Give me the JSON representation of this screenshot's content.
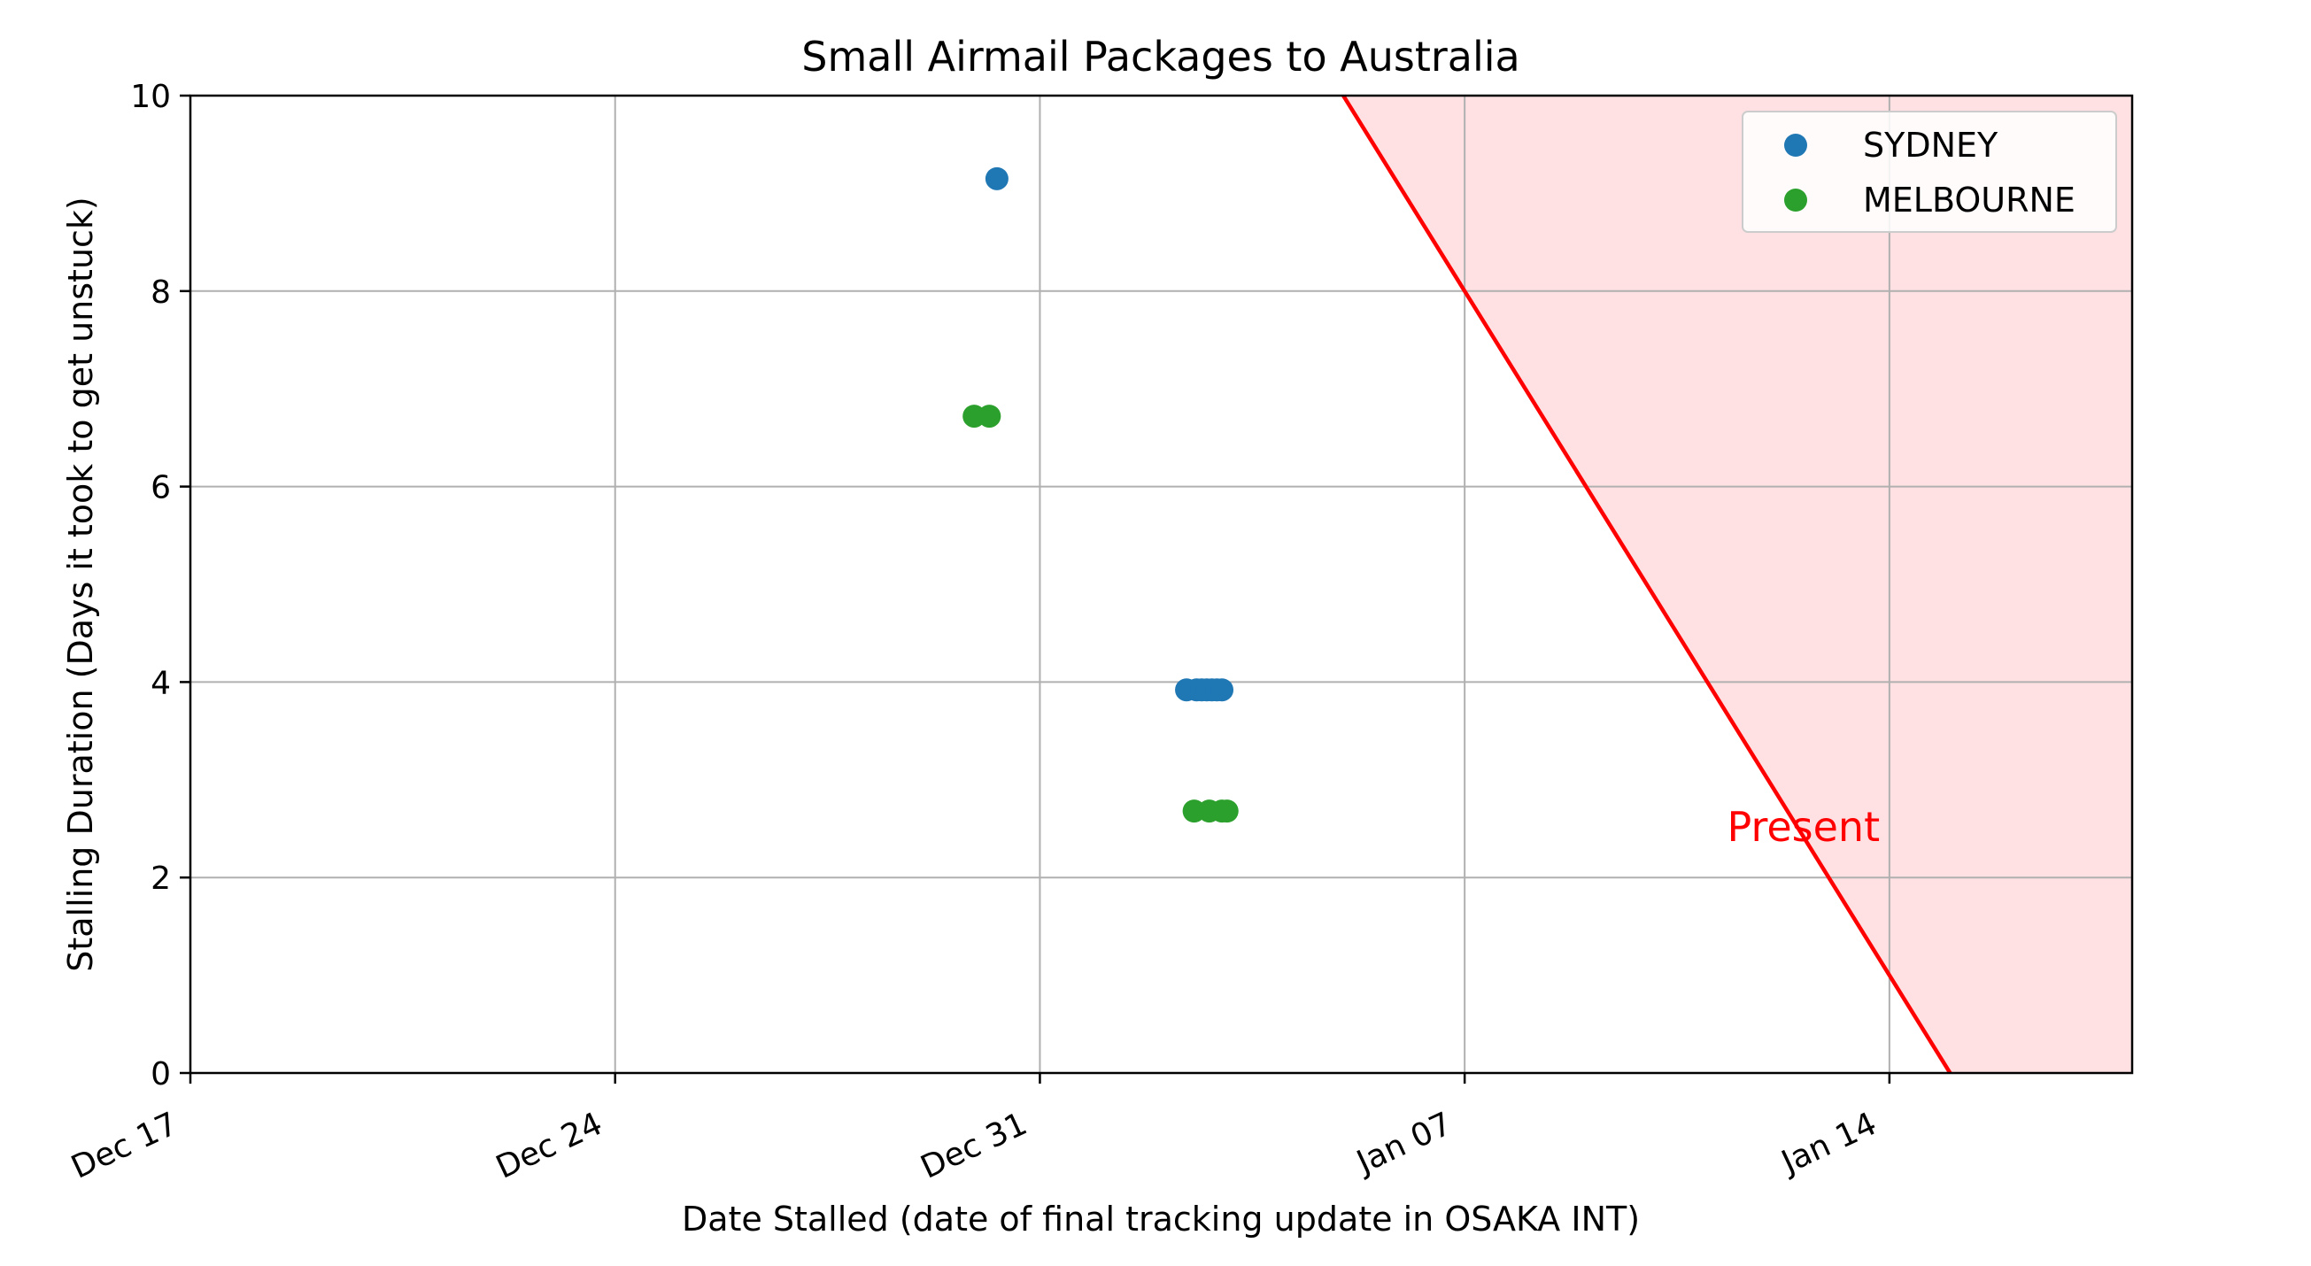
{
  "chart_data": {
    "type": "scatter",
    "title": "Small Airmail Packages to Australia",
    "xlabel": "Date Stalled (date of final tracking update in OSAKA INT)",
    "ylabel": "Stalling Duration (Days it took to get unstuck)",
    "x_is_date": true,
    "xlim": [
      "2023-12-17",
      "2024-01-18"
    ],
    "ylim": [
      0,
      10
    ],
    "yticks": [
      0,
      2,
      4,
      6,
      8,
      10
    ],
    "xticks": [
      {
        "date": "2023-12-17",
        "label": "Dec 17"
      },
      {
        "date": "2023-12-24",
        "label": "Dec 24"
      },
      {
        "date": "2023-12-31",
        "label": "Dec 31"
      },
      {
        "date": "2024-01-07",
        "label": "Jan 07"
      },
      {
        "date": "2024-01-14",
        "label": "Jan 14"
      }
    ],
    "grid": true,
    "legend_position": "top-right",
    "series": [
      {
        "name": "SYDNEY",
        "color": "#1f77b4",
        "points": [
          {
            "x": "2023-12-30T07:00",
            "y": 9.15
          },
          {
            "x": "2024-01-02T10:00",
            "y": 3.92
          },
          {
            "x": "2024-01-02T14:00",
            "y": 3.92
          },
          {
            "x": "2024-01-02T16:00",
            "y": 3.92
          },
          {
            "x": "2024-01-02T18:00",
            "y": 3.92
          },
          {
            "x": "2024-01-02T20:00",
            "y": 3.92
          },
          {
            "x": "2024-01-02T22:00",
            "y": 3.92
          },
          {
            "x": "2024-01-03T00:00",
            "y": 3.92
          }
        ]
      },
      {
        "name": "MELBOURNE",
        "color": "#2ca02c",
        "points": [
          {
            "x": "2023-12-29T22:00",
            "y": 6.72
          },
          {
            "x": "2023-12-30T04:00",
            "y": 6.72
          },
          {
            "x": "2024-01-02T13:00",
            "y": 2.68
          },
          {
            "x": "2024-01-02T19:00",
            "y": 2.68
          },
          {
            "x": "2024-01-03T00:00",
            "y": 2.68
          },
          {
            "x": "2024-01-03T02:00",
            "y": 2.68
          }
        ]
      }
    ],
    "present_line": {
      "label": "Present",
      "color": "#ff0000",
      "fill_color": "#ffe1e3",
      "start": {
        "x": "2024-01-05T00:00",
        "y": 10
      },
      "end": {
        "x": "2024-01-15T00:00",
        "y": 0
      },
      "label_at": {
        "x": "2024-01-12T00:00",
        "y": 2.3
      }
    }
  }
}
